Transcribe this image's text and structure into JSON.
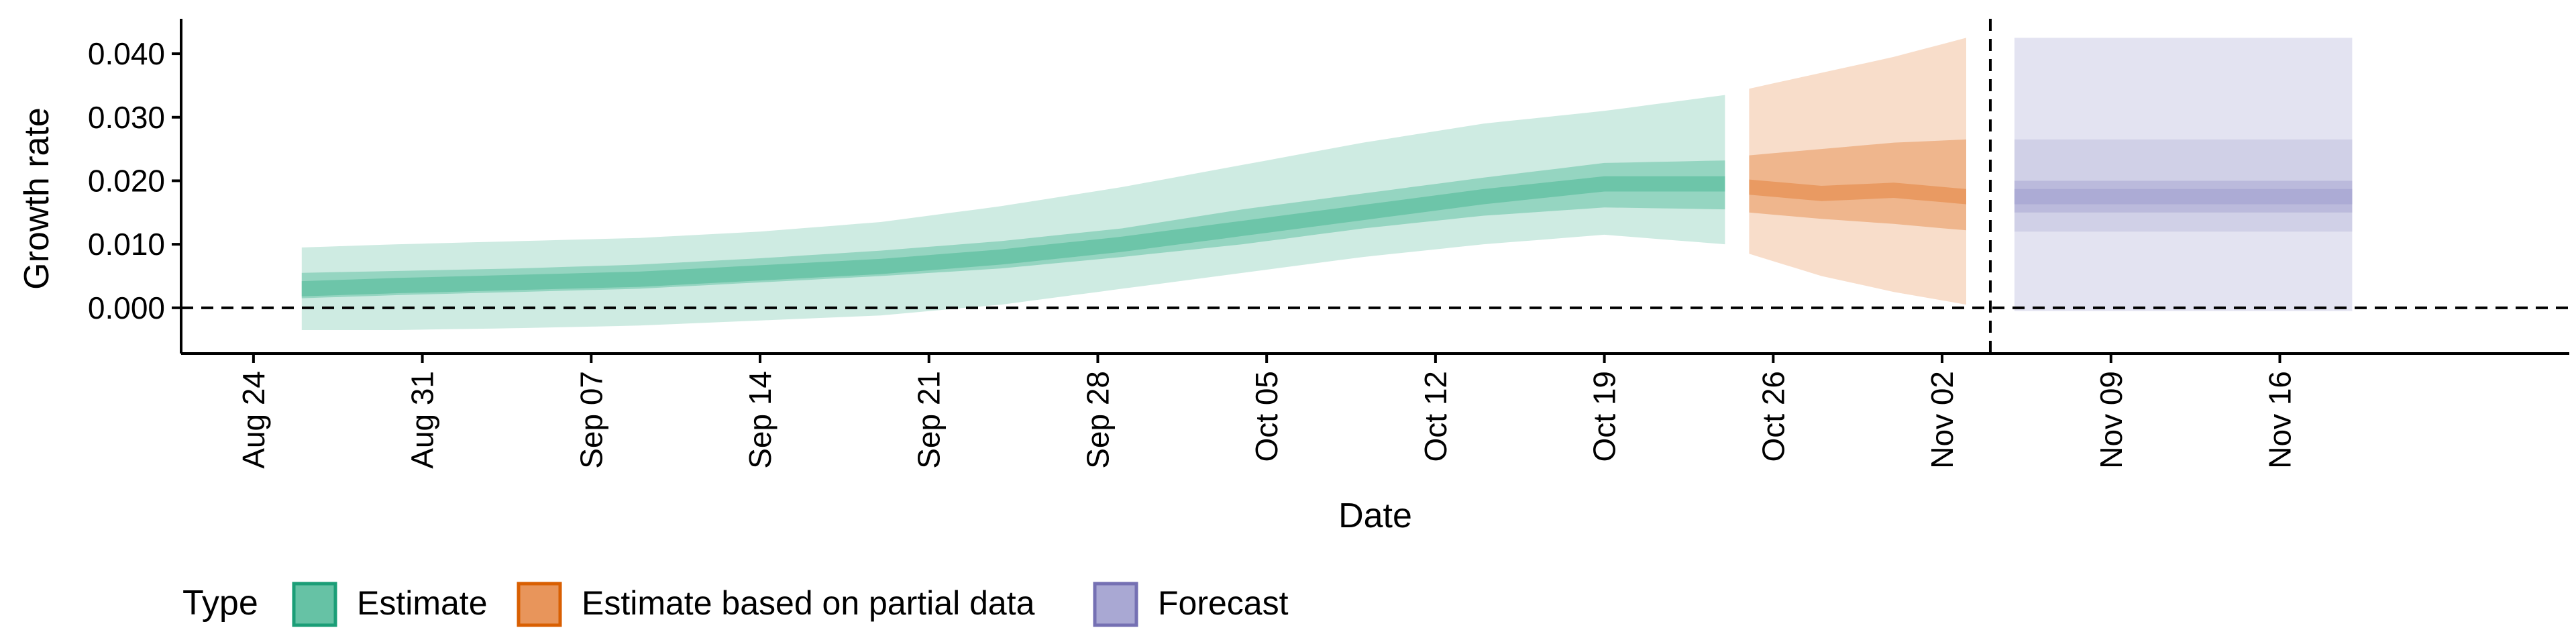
{
  "chart_data": {
    "type": "area",
    "xlabel": "Date",
    "ylabel": "Growth rate",
    "x_range": [
      "2020-08-21",
      "2020-11-28"
    ],
    "ylim": [
      -0.0072,
      0.0455
    ],
    "yticks": [
      0.0,
      0.01,
      0.02,
      0.03,
      0.04
    ],
    "ytick_labels": [
      "0.000",
      "0.010",
      "0.020",
      "0.030",
      "0.040"
    ],
    "xticks": [
      "2020-08-24",
      "2020-08-31",
      "2020-09-07",
      "2020-09-14",
      "2020-09-21",
      "2020-09-28",
      "2020-10-05",
      "2020-10-12",
      "2020-10-19",
      "2020-10-26",
      "2020-11-02",
      "2020-11-09",
      "2020-11-16"
    ],
    "xtick_labels": [
      "Aug 24",
      "Aug 31",
      "Sep 07",
      "Sep 14",
      "Sep 21",
      "Sep 28",
      "Oct 05",
      "Oct 12",
      "Oct 19",
      "Oct 26",
      "Nov 02",
      "Nov 09",
      "Nov 16"
    ],
    "reference_lines": {
      "horizontal_y": 0,
      "vertical_date": "2020-11-04"
    },
    "grid": false,
    "legend": {
      "title": "Type",
      "position": "bottom",
      "entries": [
        {
          "label": "Estimate",
          "fill": "#66c2a5",
          "stroke": "#1b9e77"
        },
        {
          "label": "Estimate based on partial data",
          "fill": "#e8955b",
          "stroke": "#d95f02"
        },
        {
          "label": "Forecast",
          "fill": "#a9a8d3",
          "stroke": "#7570b3"
        }
      ]
    },
    "series": [
      {
        "name": "Estimate",
        "color": "#66c2a5",
        "x": [
          "2020-08-26",
          "2020-08-30",
          "2020-09-04",
          "2020-09-09",
          "2020-09-14",
          "2020-09-19",
          "2020-09-24",
          "2020-09-29",
          "2020-10-04",
          "2020-10-09",
          "2020-10-14",
          "2020-10-19",
          "2020-10-24"
        ],
        "median": [
          0.003,
          0.0035,
          0.004,
          0.0045,
          0.0055,
          0.0065,
          0.008,
          0.01,
          0.0125,
          0.015,
          0.0175,
          0.0195,
          0.0195
        ],
        "lower_50": [
          0.0015,
          0.002,
          0.0025,
          0.003,
          0.004,
          0.005,
          0.0062,
          0.008,
          0.01,
          0.0125,
          0.0145,
          0.0158,
          0.0155
        ],
        "upper_50": [
          0.0055,
          0.0058,
          0.0062,
          0.0068,
          0.0078,
          0.009,
          0.0105,
          0.0125,
          0.0155,
          0.018,
          0.0205,
          0.0228,
          0.0232
        ],
        "lower_90": [
          -0.0035,
          -0.0035,
          -0.0032,
          -0.0028,
          -0.002,
          -0.0012,
          0.0005,
          0.003,
          0.0055,
          0.008,
          0.01,
          0.0115,
          0.01
        ],
        "upper_90": [
          0.0095,
          0.01,
          0.0105,
          0.011,
          0.012,
          0.0135,
          0.016,
          0.019,
          0.0225,
          0.026,
          0.029,
          0.031,
          0.0335
        ]
      },
      {
        "name": "Estimate based on partial data",
        "color": "#e8955b",
        "x": [
          "2020-10-25",
          "2020-10-28",
          "2020-10-31",
          "2020-11-03"
        ],
        "median": [
          0.019,
          0.018,
          0.0185,
          0.0175
        ],
        "lower_50": [
          0.015,
          0.014,
          0.0132,
          0.0122
        ],
        "upper_50": [
          0.024,
          0.025,
          0.026,
          0.0265
        ],
        "lower_90": [
          0.0085,
          0.005,
          0.0025,
          0.0005
        ],
        "upper_90": [
          0.0345,
          0.037,
          0.0395,
          0.0425
        ]
      },
      {
        "name": "Forecast",
        "color": "#a9a8d3",
        "x": [
          "2020-11-05",
          "2020-11-19"
        ],
        "median": [
          0.0175,
          0.0175
        ],
        "lower_50": [
          0.015,
          0.015
        ],
        "upper_50": [
          0.02,
          0.02
        ],
        "lower_90": [
          0.012,
          0.012
        ],
        "upper_90": [
          0.0265,
          0.0265
        ],
        "lower_outer": [
          -0.0005,
          -0.0005
        ],
        "upper_outer": [
          0.0425,
          0.0425
        ]
      }
    ]
  }
}
